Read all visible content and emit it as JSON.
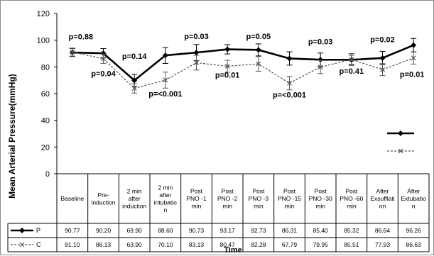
{
  "chart_data": {
    "type": "line",
    "ylabel": "Mean Arterial Pressure(mmHg)",
    "xlabel": "Time",
    "ylim": [
      0,
      120
    ],
    "yticks": [
      "0",
      "20",
      "40",
      "60",
      "80",
      "100",
      "120"
    ],
    "grid": false,
    "legend": "right",
    "categories": [
      "Baseline",
      "Pre-\ninduction",
      "2 min\nafter\ninduction",
      "2 min\nafter\nintubatio\nn",
      "Post\nPNO -1\nmin",
      "Post\nPNO -2\nmin",
      "Post\nPNO -3\nmin",
      "Post\nPNO -15\nmin",
      "Post\nPNO -30\nmin",
      "Post\nPNO -60\nmin",
      "After\nExsufflati\non",
      "After\nExtubatio\nn"
    ],
    "series": [
      {
        "name": "P",
        "color": "#000000",
        "values": [
          90.77,
          90.2,
          69.9,
          88.6,
          90.73,
          93.17,
          92.73,
          86.31,
          85.4,
          85.32,
          86.64,
          96.26
        ],
        "display": [
          "90.77",
          "90.20",
          "69.90",
          "88.60",
          "90.73",
          "93.17",
          "92.73",
          "86.31",
          "85.40",
          "85.32",
          "86.64",
          "96.26"
        ],
        "errors": [
          3,
          3.5,
          4.5,
          6,
          6,
          3.5,
          4.5,
          5,
          5,
          3.5,
          5,
          5
        ]
      },
      {
        "name": "C",
        "color": "#555555",
        "values": [
          91.1,
          86.13,
          63.9,
          70.1,
          83.13,
          80.47,
          82.28,
          67.79,
          79.95,
          85.51,
          77.93,
          86.63
        ],
        "display": [
          "91.10",
          "86.13",
          "63.90",
          "70.10",
          "83.13",
          "80.47",
          "82.28",
          "67.79",
          "79.95",
          "85.51",
          "77.93",
          "86.63"
        ],
        "errors": [
          3,
          3.5,
          3.5,
          6,
          5.5,
          4.5,
          5.5,
          5,
          5,
          4.5,
          4.5,
          4.5
        ]
      }
    ],
    "annotations": [
      {
        "text": "p=0.88",
        "index": 0,
        "y": 100.5
      },
      {
        "text": "p=0.04",
        "index": 1,
        "y": 73
      },
      {
        "text": "p=0.14",
        "index": 2,
        "y": 86
      },
      {
        "text": "p=<0.001",
        "index": 3,
        "y": 58
      },
      {
        "text": "p=0.03",
        "index": 4,
        "y": 101
      },
      {
        "text": "p=0.01",
        "index": 5,
        "y": 72
      },
      {
        "text": "p=0.05",
        "index": 6,
        "y": 101
      },
      {
        "text": "p=<0.001",
        "index": 7,
        "y": 57
      },
      {
        "text": "p=0.03",
        "index": 8,
        "y": 97
      },
      {
        "text": "p=0.41",
        "index": 9,
        "y": 75
      },
      {
        "text": "p=0.02",
        "index": 10,
        "y": 98.5
      },
      {
        "text": "p=0.01",
        "index": 11,
        "y": 72.5
      }
    ]
  }
}
